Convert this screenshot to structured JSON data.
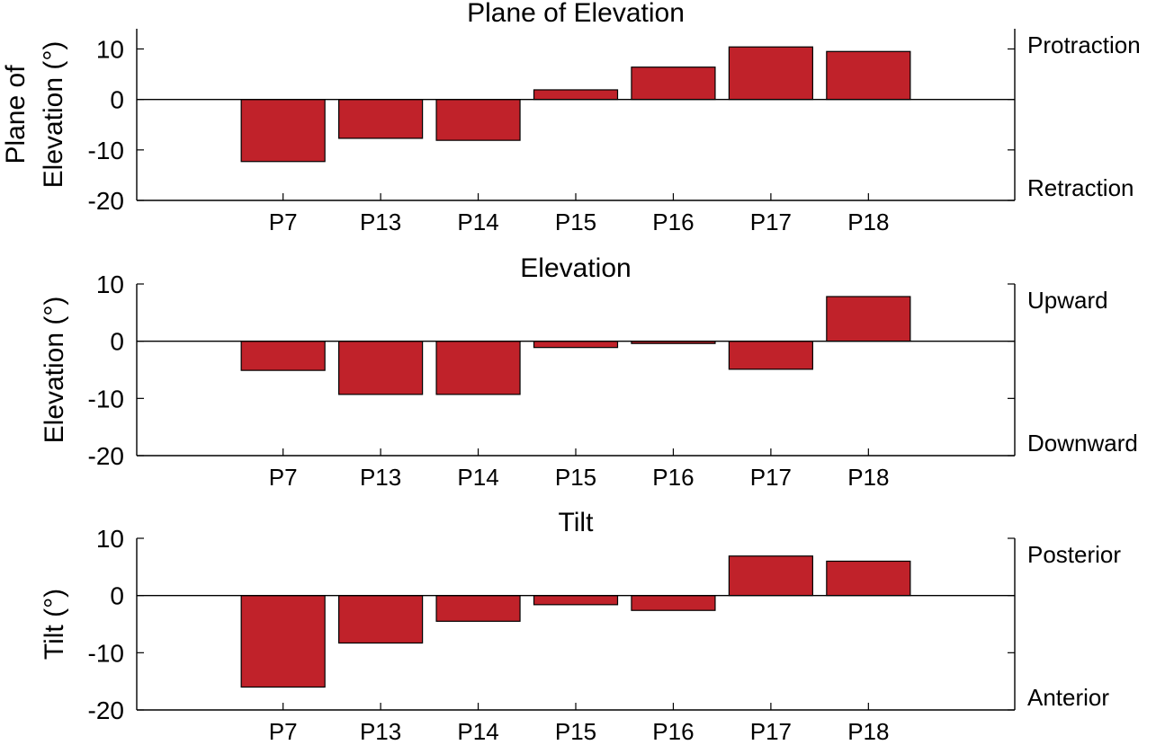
{
  "figure": {
    "colors": {
      "bar": "#c0222a",
      "bar_edge": "#000000",
      "axis": "#000000",
      "background": "#ffffff"
    }
  },
  "chart_data": [
    {
      "type": "bar",
      "title": "Plane of Elevation",
      "ylabel_lines": [
        "Plane of",
        "Elevation (°)"
      ],
      "xlabel": "",
      "categories": [
        "P7",
        "P13",
        "P14",
        "P15",
        "P16",
        "P17",
        "P18"
      ],
      "values": [
        -12.3,
        -7.7,
        -8.1,
        1.9,
        6.4,
        10.4,
        9.5
      ],
      "ylim": [
        -20,
        14
      ],
      "yticks": [
        10,
        0,
        -10,
        -20
      ],
      "right_labels": {
        "top": "Protraction",
        "bottom": "Retraction"
      },
      "grid": false
    },
    {
      "type": "bar",
      "title": "Elevation",
      "ylabel_lines": [
        "Elevation (°)"
      ],
      "xlabel": "",
      "categories": [
        "P7",
        "P13",
        "P14",
        "P15",
        "P16",
        "P17",
        "P18"
      ],
      "values": [
        -5.1,
        -9.3,
        -9.3,
        -1.1,
        -0.4,
        -4.9,
        7.8
      ],
      "ylim": [
        -20,
        10
      ],
      "yticks": [
        10,
        0,
        -10,
        -20
      ],
      "right_labels": {
        "top": "Upward",
        "bottom": "Downward"
      },
      "grid": false
    },
    {
      "type": "bar",
      "title": "Tilt",
      "ylabel_lines": [
        "Tilt (°)"
      ],
      "xlabel": "",
      "categories": [
        "P7",
        "P13",
        "P14",
        "P15",
        "P16",
        "P17",
        "P18"
      ],
      "values": [
        -16.0,
        -8.3,
        -4.5,
        -1.6,
        -2.6,
        6.9,
        6.0
      ],
      "ylim": [
        -20,
        10
      ],
      "yticks": [
        10,
        0,
        -10,
        -20
      ],
      "right_labels": {
        "top": "Posterior",
        "bottom": "Anterior"
      },
      "grid": false
    }
  ]
}
